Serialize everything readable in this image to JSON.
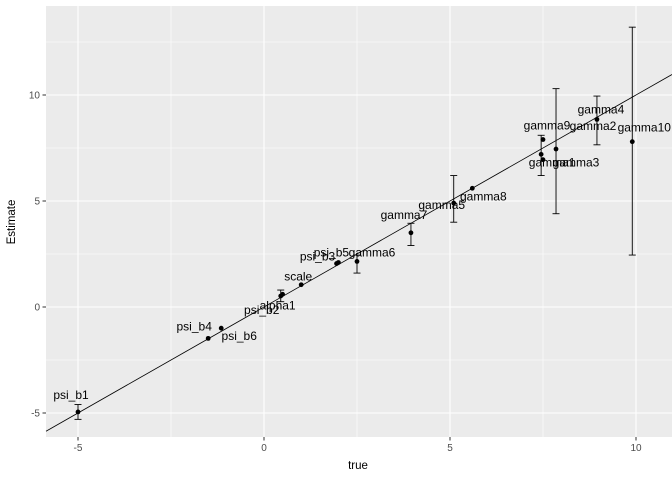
{
  "chart_data": {
    "type": "scatter",
    "title": "",
    "xlabel": "true",
    "ylabel": "Estimate",
    "x_ticks": [
      -5,
      0,
      5,
      10
    ],
    "y_ticks": [
      -5,
      0,
      5,
      10
    ],
    "x_minor_ticks": [
      -2.5,
      2.5,
      7.5
    ],
    "y_minor_ticks": [
      -2.5,
      2.5,
      7.5,
      12.5
    ],
    "xlim": [
      -5.86,
      10.97
    ],
    "ylim": [
      -6.13,
      14.2
    ],
    "grid": true,
    "legend": "none",
    "reference_line": {
      "slope": 1,
      "intercept": 0
    },
    "points": [
      {
        "label": "psi_b1",
        "true": -5.0,
        "estimate": -4.95,
        "ci": [
          -5.3,
          -4.6
        ],
        "label_offset": [
          -7,
          -17
        ]
      },
      {
        "label": "psi_b4",
        "true": -1.5,
        "estimate": -1.48,
        "ci": null,
        "label_offset": [
          -14,
          -12
        ]
      },
      {
        "label": "psi_b6",
        "true": -1.15,
        "estimate": -1.0,
        "ci": null,
        "label_offset": [
          18,
          8
        ]
      },
      {
        "label": "psi_b2",
        "true": 0.45,
        "estimate": 0.52,
        "ci": [
          0.25,
          0.8
        ],
        "label_offset": [
          -19,
          14
        ]
      },
      {
        "label": "alpha1",
        "true": 0.5,
        "estimate": 0.6,
        "ci": null,
        "label_offset": [
          -5,
          11
        ]
      },
      {
        "label": "scale",
        "true": 1.0,
        "estimate": 1.05,
        "ci": null,
        "label_offset": [
          -3,
          -8
        ]
      },
      {
        "label": "psi_b3",
        "true": 1.95,
        "estimate": 2.05,
        "ci": null,
        "label_offset": [
          -19,
          -7
        ]
      },
      {
        "label": "psi_b5",
        "true": 2.0,
        "estimate": 2.1,
        "ci": null,
        "label_offset": [
          -7,
          -10
        ]
      },
      {
        "label": "gamma6",
        "true": 2.5,
        "estimate": 2.15,
        "ci": [
          1.6,
          2.45
        ],
        "label_offset": [
          15,
          -9
        ]
      },
      {
        "label": "gamma7",
        "true": 3.95,
        "estimate": 3.5,
        "ci": [
          2.9,
          3.95
        ],
        "label_offset": [
          -7,
          -18
        ]
      },
      {
        "label": "gamma5",
        "true": 5.1,
        "estimate": 4.9,
        "ci": [
          4.0,
          6.2
        ],
        "label_offset": [
          -12,
          2
        ]
      },
      {
        "label": "gamma8",
        "true": 5.6,
        "estimate": 5.6,
        "ci": null,
        "label_offset": [
          11,
          8
        ]
      },
      {
        "label": "gamma1",
        "true": 7.45,
        "estimate": 7.2,
        "ci": [
          6.2,
          8.1
        ],
        "label_offset": [
          11,
          8
        ]
      },
      {
        "label": "gamma3",
        "true": 7.5,
        "estimate": 6.95,
        "ci": null,
        "label_offset": [
          33,
          3
        ]
      },
      {
        "label": "gamma9",
        "true": 7.5,
        "estimate": 7.9,
        "ci": null,
        "label_offset": [
          4,
          -14
        ]
      },
      {
        "label": "gamma2",
        "true": 7.85,
        "estimate": 7.45,
        "ci": [
          4.4,
          10.3
        ],
        "label_offset": [
          37,
          -23
        ]
      },
      {
        "label": "gamma4",
        "true": 8.95,
        "estimate": 8.85,
        "ci": [
          7.65,
          9.95
        ],
        "label_offset": [
          4,
          -10
        ]
      },
      {
        "label": "gamma10",
        "true": 9.9,
        "estimate": 7.8,
        "ci": [
          2.45,
          13.2
        ],
        "label_offset": [
          12,
          -14
        ]
      }
    ],
    "colors": {
      "panel_bg": "#ebebeb",
      "grid": "#ffffff",
      "point": "#000000",
      "error_bar": "#000000",
      "reference_line": "#000000",
      "tick_label": "#4d4d4d",
      "tick_mark": "#333333",
      "axis_title": "#000000"
    }
  }
}
